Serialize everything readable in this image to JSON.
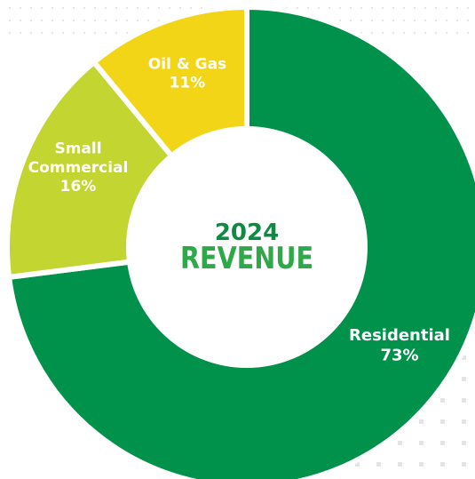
{
  "chart_data": {
    "type": "pie",
    "title_year": "2024",
    "title": "REVENUE",
    "segments": [
      {
        "label": [
          "Residential"
        ],
        "percent_label": "73%",
        "value": 73,
        "color": "#00924a"
      },
      {
        "label": [
          "Small",
          "Commercial"
        ],
        "percent_label": "16%",
        "value": 16,
        "color": "#c3d530"
      },
      {
        "label": [
          "Oil & Gas"
        ],
        "percent_label": "11%",
        "value": 11,
        "color": "#f2d517"
      }
    ]
  },
  "colors": {
    "background": "#ffffff",
    "separator": "#ffffff",
    "dots": "#e4e4e4",
    "center_year": "#0f8a43",
    "center_title": "#2ea848"
  }
}
